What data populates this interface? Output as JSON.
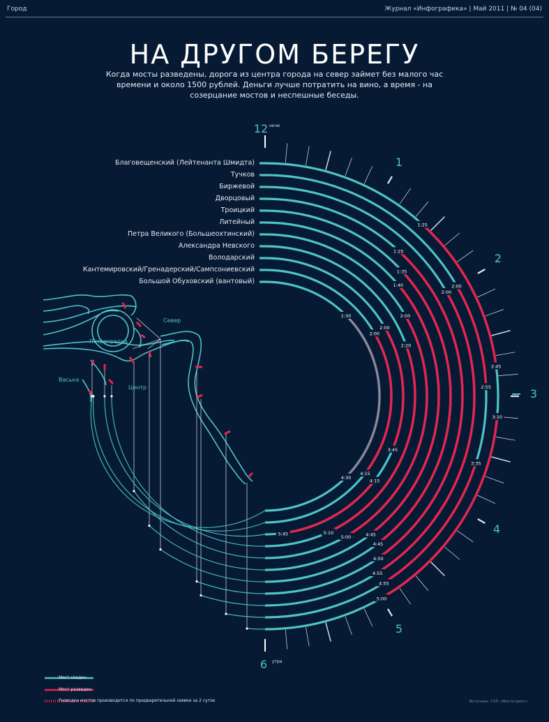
{
  "header": {
    "section": "Город",
    "issue": "Журнал «Инфографика» | Май 2011 | № 04 (04)"
  },
  "title": "НА ДРУГОМ БЕРЕГУ",
  "subtitle": "Когда мосты разведены, дорога из центра города на север займет без малого час времени и около 1500 рублей. Деньги лучше потратить на вино, а время - на созерцание мостов и неспешные беседы.",
  "clock": {
    "labels": [
      {
        "text": "12",
        "sup": "ночи"
      },
      {
        "text": "1",
        "sup": ""
      },
      {
        "text": "2",
        "sup": ""
      },
      {
        "text": "3",
        "sup": ""
      },
      {
        "text": "4",
        "sup": ""
      },
      {
        "text": "5",
        "sup": ""
      },
      {
        "text": "6",
        "sup": "утра"
      }
    ]
  },
  "map_labels": {
    "north": "Север",
    "petrogradka": "Петроградка",
    "vaska": "Васька",
    "center": "Центр"
  },
  "legend": {
    "closed": "Мост сведен",
    "open": "Мост разведен",
    "on_request": "Разводка мостов производится по предварительной заявке за 2 суток"
  },
  "source": "Источник: ГУП «Мостотрест»",
  "colors": {
    "background": "#071a33",
    "closed": "#4fc3c6",
    "open": "#e8234f"
  },
  "chart_data": {
    "type": "radial timeline",
    "time_range": [
      "0:00",
      "6:00"
    ],
    "bridges": [
      {
        "name": "Благовещенский (Лейтенанта Шмидта)",
        "open": [
          [
            "1:25",
            "2:45"
          ],
          [
            "3:10",
            "5:00"
          ]
        ]
      },
      {
        "name": "Тучков",
        "open": [
          [
            "2:00",
            "2:55"
          ],
          [
            "3:35",
            "4:55"
          ]
        ]
      },
      {
        "name": "Биржевой",
        "open": [
          [
            "2:00",
            "4:55"
          ]
        ]
      },
      {
        "name": "Дворцовый",
        "open": [
          [
            "1:25",
            "4:50"
          ]
        ]
      },
      {
        "name": "Троицкий",
        "open": [
          [
            "1:35",
            "4:45"
          ]
        ]
      },
      {
        "name": "Литейный",
        "open": [
          [
            "1:40",
            "4:45"
          ]
        ]
      },
      {
        "name": "Петра Великого (Большеохтинский)",
        "open": [
          [
            "2:00",
            "5:00"
          ]
        ]
      },
      {
        "name": "Александра Невского",
        "open": [
          [
            "2:20",
            "5:10"
          ]
        ]
      },
      {
        "name": "Володарский",
        "open": [
          [
            "2:00",
            "3:45"
          ],
          [
            "4:15",
            "5:45"
          ]
        ]
      },
      {
        "name": "Кантемировский/Гренадерский/Сампсониевский",
        "open": [
          [
            "2:00",
            "4:15"
          ]
        ]
      },
      {
        "name": "Большой Обуховский (вантовый)",
        "on_request": [
          [
            "1:30",
            "4:30"
          ]
        ]
      }
    ],
    "time_labels": [
      "1:25",
      "2:00",
      "2:00",
      "2:45",
      "2:55",
      "3:10",
      "3:35",
      "1:25",
      "1:35",
      "1:40",
      "2:00",
      "2:20",
      "1:30",
      "2:00",
      "3:45",
      "4:15",
      "4:30",
      "5:45",
      "5:10",
      "5:00",
      "4:45",
      "4:50",
      "4:55",
      "4:55",
      "5:00"
    ]
  }
}
